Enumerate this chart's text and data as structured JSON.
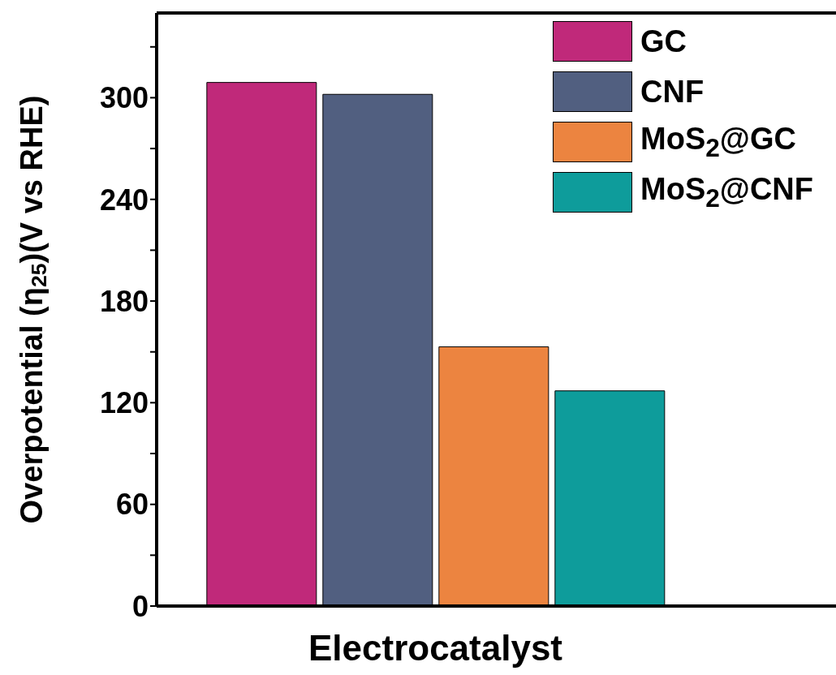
{
  "chart_data": {
    "type": "bar",
    "xlabel": "Electrocatalyst",
    "ylabel": "Overpotential (η$_{25}$)(V vs RHE)",
    "categories": [
      null
    ],
    "series": [
      {
        "name": "GC",
        "color": "#c0297a",
        "values": [
          309
        ]
      },
      {
        "name": "CNF",
        "color": "#515f80",
        "values": [
          302
        ]
      },
      {
        "name": "MoS$_{2}$@GC",
        "color": "#ec8440",
        "values": [
          153
        ]
      },
      {
        "name": "MoS$_{2}$@CNF",
        "color": "#0e9c9b",
        "values": [
          127
        ]
      }
    ],
    "ylim": [
      0,
      350
    ],
    "yticks": [
      0,
      {
        "value": 30,
        "label": null
      },
      60,
      {
        "value": 90,
        "label": null
      },
      120,
      {
        "value": 150,
        "label": null
      },
      180,
      {
        "value": 210,
        "label": null
      },
      240,
      {
        "value": 270,
        "label": null
      },
      300,
      {
        "value": 330,
        "label": null
      }
    ],
    "grid": false,
    "legend": "top right"
  }
}
